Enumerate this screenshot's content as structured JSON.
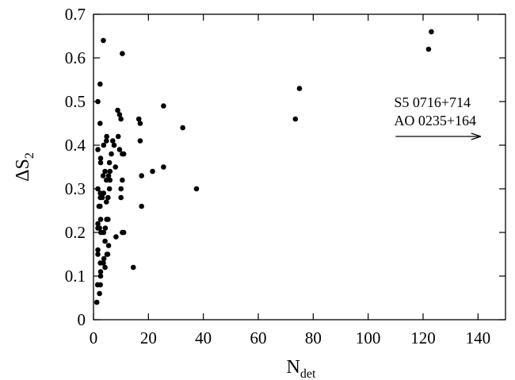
{
  "chart_data": {
    "type": "scatter",
    "xlabel": {
      "main": "N",
      "sub": "det"
    },
    "ylabel": {
      "main": "ΔS",
      "sub": "2"
    },
    "xlim": [
      0,
      150
    ],
    "ylim": [
      0,
      0.7
    ],
    "xticks": [
      0,
      20,
      40,
      60,
      80,
      100,
      120,
      140
    ],
    "yticks": [
      0,
      0.1,
      0.2,
      0.3,
      0.4,
      0.5,
      0.6,
      0.7
    ],
    "ytick_labels": [
      "0",
      "0.1",
      "0.2",
      "0.3",
      "0.4",
      "0.5",
      "0.6",
      "0.7"
    ],
    "grid": false,
    "annotation": {
      "lines": [
        "S5 0716+714",
        "AO 0235+164"
      ],
      "arrow_from_x": 110,
      "arrow_to_x": 141,
      "arrow_y": 0.42
    },
    "points": [
      [
        1.2,
        0.04
      ],
      [
        1.5,
        0.08
      ],
      [
        2.2,
        0.06
      ],
      [
        2.5,
        0.08
      ],
      [
        2.6,
        0.1
      ],
      [
        2.6,
        0.11
      ],
      [
        1.6,
        0.15
      ],
      [
        1.6,
        0.16
      ],
      [
        2.5,
        0.13
      ],
      [
        3.6,
        0.13
      ],
      [
        3.8,
        0.14
      ],
      [
        4.2,
        0.12
      ],
      [
        5.2,
        0.15
      ],
      [
        4.9,
        0.15
      ],
      [
        5.5,
        0.17
      ],
      [
        4.2,
        0.18
      ],
      [
        1.6,
        0.21
      ],
      [
        1.6,
        0.22
      ],
      [
        2.2,
        0.21
      ],
      [
        2.7,
        0.2
      ],
      [
        3.7,
        0.2
      ],
      [
        4.3,
        0.21
      ],
      [
        4.8,
        0.23
      ],
      [
        5.3,
        0.23
      ],
      [
        2.6,
        0.23
      ],
      [
        2.0,
        0.26
      ],
      [
        2.4,
        0.26
      ],
      [
        1.6,
        0.3
      ],
      [
        2.5,
        0.28
      ],
      [
        2.5,
        0.29
      ],
      [
        3.2,
        0.28
      ],
      [
        3.7,
        0.29
      ],
      [
        4.7,
        0.27
      ],
      [
        5.3,
        0.28
      ],
      [
        5.8,
        0.3
      ],
      [
        4.7,
        0.32
      ],
      [
        3.5,
        0.33
      ],
      [
        4.2,
        0.34
      ],
      [
        5.5,
        0.33
      ],
      [
        6.0,
        0.34
      ],
      [
        6.0,
        0.32
      ],
      [
        2.6,
        0.36
      ],
      [
        2.6,
        0.37
      ],
      [
        1.6,
        0.39
      ],
      [
        3.7,
        0.4
      ],
      [
        4.7,
        0.41
      ],
      [
        4.8,
        0.42
      ],
      [
        5.8,
        0.36
      ],
      [
        6.5,
        0.38
      ],
      [
        7.5,
        0.4
      ],
      [
        7.0,
        0.41
      ],
      [
        8.0,
        0.35
      ],
      [
        9.0,
        0.42
      ],
      [
        9.5,
        0.39
      ],
      [
        10.5,
        0.38
      ],
      [
        8.8,
        0.48
      ],
      [
        9.5,
        0.47
      ],
      [
        10.0,
        0.46
      ],
      [
        10.0,
        0.3
      ],
      [
        10.0,
        0.28
      ],
      [
        10.5,
        0.32
      ],
      [
        10.5,
        0.2
      ],
      [
        11.0,
        0.2
      ],
      [
        8.2,
        0.19
      ],
      [
        14.5,
        0.12
      ],
      [
        11.0,
        0.38
      ],
      [
        1.6,
        0.5
      ],
      [
        2.4,
        0.54
      ],
      [
        2.4,
        0.45
      ],
      [
        3.6,
        0.64
      ],
      [
        10.5,
        0.61
      ],
      [
        16.5,
        0.46
      ],
      [
        17.0,
        0.45
      ],
      [
        17.0,
        0.41
      ],
      [
        17.5,
        0.33
      ],
      [
        17.5,
        0.26
      ],
      [
        21.5,
        0.34
      ],
      [
        25.5,
        0.49
      ],
      [
        25.5,
        0.35
      ],
      [
        32.5,
        0.44
      ],
      [
        37.5,
        0.3
      ],
      [
        73.5,
        0.46
      ],
      [
        75.0,
        0.53
      ],
      [
        122.0,
        0.62
      ],
      [
        123.0,
        0.66
      ]
    ]
  }
}
